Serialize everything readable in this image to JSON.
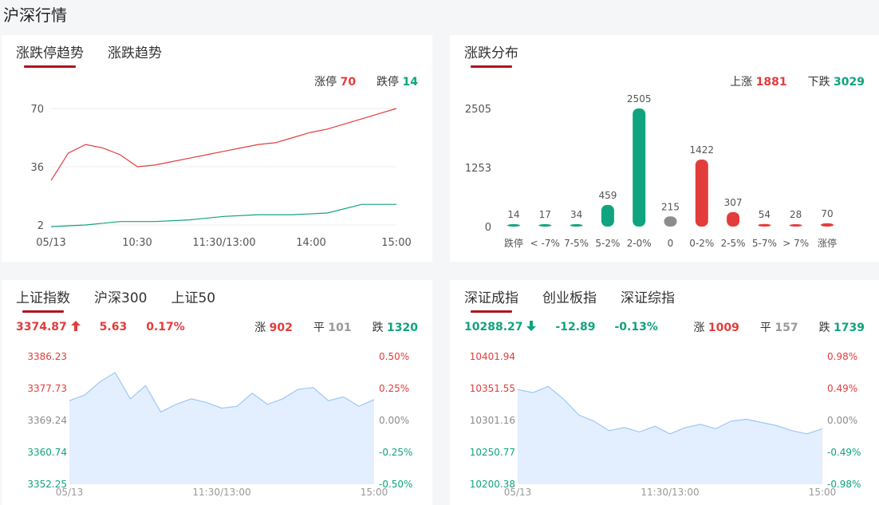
{
  "page_title": "沪深行情",
  "panel1": {
    "tabs": [
      {
        "label": "涨跌停趋势",
        "active": true
      },
      {
        "label": "涨跌趋势",
        "active": false
      }
    ],
    "stats": {
      "up_limit_label": "涨停",
      "up_limit_value": "70",
      "down_limit_label": "跌停",
      "down_limit_value": "14"
    },
    "chart_data": {
      "type": "line",
      "y_ticks": [
        "70",
        "36",
        "2"
      ],
      "x_ticks": [
        "05/13",
        "10:30",
        "11:30/13:00",
        "14:00",
        "15:00"
      ],
      "series": [
        {
          "color": "#e33c3c",
          "x": [
            0,
            5,
            10,
            15,
            20,
            25,
            30,
            35,
            40,
            45,
            50,
            55,
            60,
            65,
            70,
            75,
            80,
            85,
            90,
            95,
            100
          ],
          "values": [
            28,
            44,
            49,
            47,
            43,
            36,
            37,
            39,
            41,
            43,
            45,
            47,
            49,
            50,
            53,
            56,
            58,
            61,
            64,
            67,
            70
          ]
        },
        {
          "color": "#10a37f",
          "x": [
            0,
            10,
            20,
            30,
            40,
            50,
            60,
            70,
            80,
            90,
            100
          ],
          "values": [
            1,
            2,
            4,
            4,
            5,
            7,
            8,
            8,
            9,
            14,
            14
          ]
        }
      ]
    }
  },
  "panel2": {
    "tabs": [
      {
        "label": "涨跌分布",
        "active": true
      }
    ],
    "stats": {
      "up_label": "上涨",
      "up_value": "1881",
      "down_label": "下跌",
      "down_value": "3029"
    },
    "chart_data": {
      "type": "bar",
      "y_ticks": [
        "2505",
        "1253",
        "0"
      ],
      "ylim": [
        0,
        2505
      ],
      "categories": [
        "跌停",
        "< -7%",
        "7-5%",
        "5-2%",
        "2-0%",
        "0",
        "0-2%",
        "2-5%",
        "5-7%",
        "> 7%",
        "涨停"
      ],
      "values": [
        14,
        17,
        34,
        459,
        2505,
        215,
        1422,
        307,
        54,
        28,
        70
      ],
      "colors": [
        "#10a37f",
        "#10a37f",
        "#10a37f",
        "#10a37f",
        "#10a37f",
        "#8c8c8c",
        "#e33c3c",
        "#e33c3c",
        "#e33c3c",
        "#e33c3c",
        "#e33c3c"
      ]
    }
  },
  "panel3": {
    "tabs": [
      {
        "label": "上证指数",
        "active": true
      },
      {
        "label": "沪深300",
        "active": false
      },
      {
        "label": "上证50",
        "active": false
      }
    ],
    "quote": {
      "price": "3374.87",
      "change": "5.63",
      "pct": "0.17%",
      "direction": "up"
    },
    "breadth": {
      "up_label": "涨",
      "up_value": "902",
      "flat_label": "平",
      "flat_value": "101",
      "down_label": "跌",
      "down_value": "1320"
    },
    "chart_data": {
      "type": "area",
      "left_ticks": [
        "3386.23",
        "3377.73",
        "3369.24",
        "3360.74",
        "3352.25"
      ],
      "right_ticks": [
        "0.50%",
        "0.25%",
        "0.00%",
        "-0.25%",
        "-0.50%"
      ],
      "x_ticks": [
        "05/13",
        "11:30/13:00",
        "15:00"
      ],
      "ylim": [
        3352.25,
        3386.23
      ],
      "x": [
        0,
        5,
        10,
        15,
        20,
        25,
        30,
        35,
        40,
        45,
        50,
        55,
        60,
        65,
        70,
        75,
        80,
        85,
        90,
        95,
        100
      ],
      "values": [
        3374.5,
        3376.0,
        3379.5,
        3382.0,
        3375.0,
        3378.5,
        3371.5,
        3373.5,
        3375.0,
        3374.0,
        3372.5,
        3373.0,
        3376.5,
        3373.5,
        3375.0,
        3377.5,
        3378.0,
        3374.5,
        3375.5,
        3373.0,
        3374.8
      ]
    }
  },
  "panel4": {
    "tabs": [
      {
        "label": "深证成指",
        "active": true
      },
      {
        "label": "创业板指",
        "active": false
      },
      {
        "label": "深证综指",
        "active": false
      }
    ],
    "quote": {
      "price": "10288.27",
      "change": "-12.89",
      "pct": "-0.13%",
      "direction": "down"
    },
    "breadth": {
      "up_label": "涨",
      "up_value": "1009",
      "flat_label": "平",
      "flat_value": "157",
      "down_label": "跌",
      "down_value": "1739"
    },
    "chart_data": {
      "type": "area",
      "left_ticks": [
        "10401.94",
        "10351.55",
        "10301.16",
        "10250.77",
        "10200.38"
      ],
      "right_ticks": [
        "0.98%",
        "0.49%",
        "0.00%",
        "-0.49%",
        "-0.98%"
      ],
      "x_ticks": [
        "05/13",
        "11:30/13:00",
        "15:00"
      ],
      "ylim": [
        10200.38,
        10401.94
      ],
      "x": [
        0,
        5,
        10,
        15,
        20,
        25,
        30,
        35,
        40,
        45,
        50,
        55,
        60,
        65,
        70,
        75,
        80,
        85,
        90,
        95,
        100
      ],
      "values": [
        10350,
        10345,
        10355,
        10335,
        10310,
        10300,
        10285,
        10290,
        10283,
        10292,
        10280,
        10290,
        10295,
        10288,
        10300,
        10303,
        10298,
        10293,
        10285,
        10280,
        10288
      ]
    }
  },
  "colors": {
    "up": "#e33c3c",
    "down": "#10a37f",
    "flat": "#8c8c8c",
    "tab_underline": "#b0141f",
    "area_fill": "#e3efff",
    "area_line": "#9ec8f2"
  }
}
